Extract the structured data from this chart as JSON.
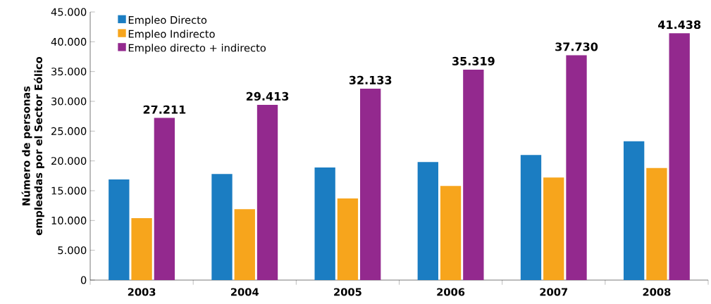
{
  "chart_data": {
    "type": "bar",
    "ylabel": "Número de personas empleadas por el Sector Eólico",
    "categories": [
      "2003",
      "2004",
      "2005",
      "2006",
      "2007",
      "2008"
    ],
    "series": [
      {
        "name": "Empleo Directo",
        "color": "#1b7dc2",
        "values": [
          16900,
          17800,
          18900,
          19800,
          21000,
          23300
        ]
      },
      {
        "name": "Empleo Indirecto",
        "color": "#f7a51c",
        "values": [
          10400,
          11900,
          13700,
          15800,
          17200,
          18800
        ]
      },
      {
        "name": "Empleo directo + indirecto",
        "color": "#93298e",
        "values": [
          27211,
          29413,
          32133,
          35319,
          37730,
          41438
        ],
        "value_labels": [
          "27.211",
          "29.413",
          "32.133",
          "35.319",
          "37.730",
          "41.438"
        ]
      }
    ],
    "ylim": [
      0,
      45000
    ],
    "yticks": [
      {
        "value": 0,
        "label": "0"
      },
      {
        "value": 5000,
        "label": "5.000"
      },
      {
        "value": 10000,
        "label": "10.000"
      },
      {
        "value": 15000,
        "label": "15.000"
      },
      {
        "value": 20000,
        "label": "20.000"
      },
      {
        "value": 25000,
        "label": "25.000"
      },
      {
        "value": 30000,
        "label": "30.000"
      },
      {
        "value": 35000,
        "label": "35.000"
      },
      {
        "value": 40000,
        "label": "40.000"
      },
      {
        "value": 45000,
        "label": "45.000"
      }
    ],
    "grid": false,
    "legend": "top left"
  }
}
